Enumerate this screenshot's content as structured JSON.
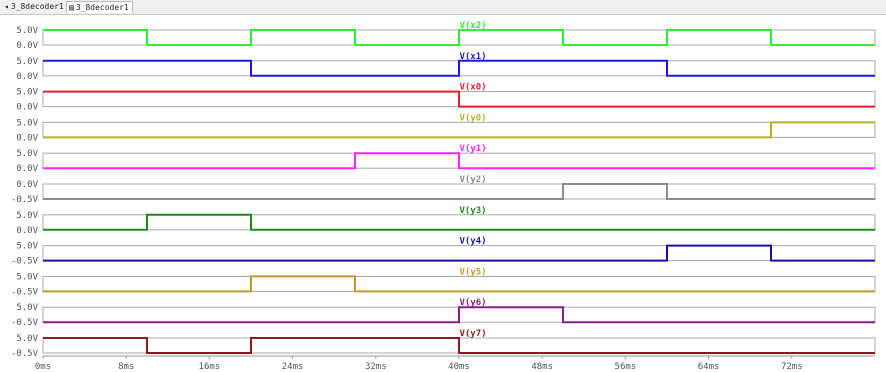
{
  "tabs": [
    {
      "label": "3_8decoder1",
      "icon": "waveform-icon",
      "active": false
    },
    {
      "label": "3_8decoder1",
      "icon": "schematic-icon",
      "active": true
    }
  ],
  "chart_data": {
    "type": "line",
    "subtype": "stacked-digital-waveforms",
    "x_unit": "ms",
    "xlim": [
      0,
      80
    ],
    "xticks": [
      0,
      8,
      16,
      24,
      32,
      40,
      48,
      56,
      64,
      72
    ],
    "xtick_labels": [
      "0ms",
      "8ms",
      "16ms",
      "24ms",
      "32ms",
      "40ms",
      "48ms",
      "56ms",
      "64ms",
      "72ms"
    ],
    "grid": false,
    "series": [
      {
        "name": "V(x2)",
        "color": "#33ee33",
        "yticks": [
          "5.0V",
          "0.0V"
        ],
        "edges": [
          0,
          10,
          20,
          30,
          40,
          50,
          60,
          70,
          80
        ],
        "start_high": true
      },
      {
        "name": "V(x1)",
        "color": "#1a1adb",
        "yticks": [
          "5.0V",
          "0.0V"
        ],
        "edges": [
          0,
          20,
          40,
          60,
          80
        ],
        "start_high": true
      },
      {
        "name": "V(x0)",
        "color": "#e0202a",
        "yticks": [
          "5.0V",
          "0.0V"
        ],
        "edges": [
          0,
          40,
          80
        ],
        "start_high": true
      },
      {
        "name": "V(y0)",
        "color": "#b5b31e",
        "yticks": [
          "5.0V",
          "0.0V"
        ],
        "edges": [
          0,
          70,
          80
        ],
        "start_high": false
      },
      {
        "name": "V(y1)",
        "color": "#ff22ff",
        "yticks": [
          "5.0V",
          "0.0V"
        ],
        "edges": [
          0,
          30,
          40,
          80
        ],
        "start_high": false
      },
      {
        "name": "V(y2)",
        "color": "#8c8c8c",
        "yticks": [
          "0.0V",
          "-0.5V"
        ],
        "edges": [
          0,
          50,
          60,
          80
        ],
        "start_high": false
      },
      {
        "name": "V(y3)",
        "color": "#1a8a1a",
        "yticks": [
          "5.0V",
          "0.0V"
        ],
        "edges": [
          0,
          10,
          20,
          80
        ],
        "start_high": false
      },
      {
        "name": "V(y4)",
        "color": "#14149e",
        "yticks": [
          "5.0V",
          "-0.5V"
        ],
        "edges": [
          0,
          60,
          70,
          80
        ],
        "start_high": false
      },
      {
        "name": "V(y5)",
        "color": "#c8962a",
        "yticks": [
          "5.0V",
          "-0.5V"
        ],
        "edges": [
          0,
          20,
          30,
          80
        ],
        "start_high": false
      },
      {
        "name": "V(y6)",
        "color": "#8b1a8b",
        "yticks": [
          "5.0V",
          "-0.5V"
        ],
        "edges": [
          0,
          40,
          50,
          80
        ],
        "start_high": false
      },
      {
        "name": "V(y7)",
        "color": "#8b1a1a",
        "yticks": [
          "5.0V",
          "-0.5V"
        ],
        "edges": [
          0,
          10,
          20,
          40,
          80
        ],
        "start_high": true
      }
    ]
  }
}
